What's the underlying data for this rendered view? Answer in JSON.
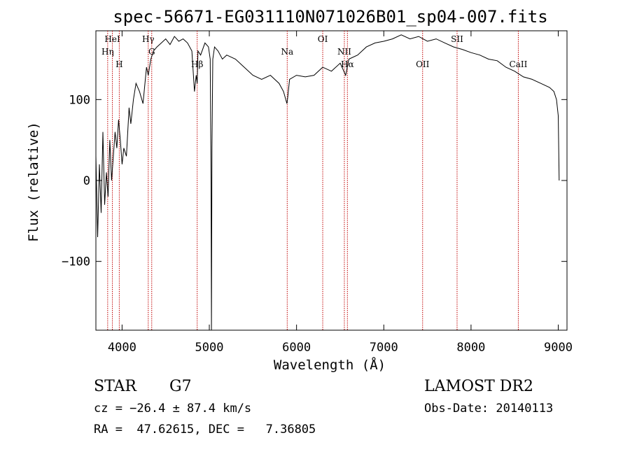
{
  "chart_data": {
    "type": "line",
    "title": "spec-56671-EG031110N071026B01_sp04-007.fits",
    "xlabel": "Wavelength (Å)",
    "ylabel": "Flux (relative)",
    "xlim": [
      3700,
      9100
    ],
    "ylim": [
      -185,
      185
    ],
    "x_ticks": [
      4000,
      5000,
      6000,
      7000,
      8000,
      9000
    ],
    "y_ticks": [
      -100,
      0,
      100
    ],
    "grid": false,
    "series": [
      {
        "x": [
          3700,
          3720,
          3740,
          3760,
          3780,
          3800,
          3820,
          3840,
          3860,
          3880,
          3900,
          3920,
          3940,
          3960,
          3980,
          4000,
          4020,
          4050,
          4080,
          4100,
          4130,
          4160,
          4200,
          4240,
          4280,
          4300,
          4330,
          4360,
          4400,
          4450,
          4500,
          4550,
          4600,
          4650,
          4700,
          4750,
          4800,
          4830,
          4850,
          4861,
          4870,
          4900,
          4950,
          4990,
          5010,
          5020,
          5025,
          5030,
          5040,
          5060,
          5100,
          5150,
          5200,
          5300,
          5400,
          5500,
          5600,
          5700,
          5800,
          5850,
          5890,
          5896,
          5920,
          6000,
          6100,
          6200,
          6300,
          6400,
          6500,
          6563,
          6600,
          6700,
          6800,
          6900,
          7000,
          7100,
          7200,
          7300,
          7400,
          7500,
          7600,
          7700,
          7800,
          7900,
          8000,
          8100,
          8200,
          8300,
          8400,
          8500,
          8600,
          8700,
          8800,
          8900,
          8950,
          8980,
          9000,
          9010
        ],
        "y": [
          30,
          -70,
          20,
          -40,
          60,
          -30,
          10,
          -20,
          50,
          0,
          30,
          60,
          40,
          75,
          50,
          20,
          40,
          30,
          90,
          70,
          100,
          120,
          110,
          95,
          140,
          130,
          150,
          160,
          165,
          170,
          175,
          168,
          178,
          172,
          175,
          170,
          160,
          110,
          130,
          120,
          160,
          155,
          170,
          165,
          150,
          0,
          -185,
          40,
          150,
          165,
          160,
          150,
          155,
          150,
          140,
          130,
          125,
          130,
          120,
          110,
          95,
          100,
          125,
          130,
          128,
          130,
          140,
          135,
          145,
          130,
          150,
          155,
          165,
          170,
          172,
          175,
          180,
          175,
          178,
          172,
          175,
          170,
          165,
          162,
          158,
          155,
          150,
          148,
          140,
          135,
          128,
          125,
          120,
          115,
          110,
          100,
          80,
          0
        ]
      }
    ],
    "lines": [
      {
        "x": 3889,
        "label": "HeI",
        "row": 0
      },
      {
        "x": 3835,
        "label": "Hη",
        "row": 1
      },
      {
        "x": 3968,
        "label": "H",
        "row": 2
      },
      {
        "x": 4300,
        "label": "Hγ",
        "row": 0
      },
      {
        "x": 4340,
        "label": "G",
        "row": 1
      },
      {
        "x": 4861,
        "label": "Hβ",
        "row": 2
      },
      {
        "x": 5893,
        "label": "Na",
        "row": 1
      },
      {
        "x": 6300,
        "label": "OI",
        "row": 0
      },
      {
        "x": 6548,
        "label": "NII",
        "row": 1
      },
      {
        "x": 6583,
        "label": "Hα",
        "row": 2
      },
      {
        "x": 7445,
        "label": "OII",
        "row": 2
      },
      {
        "x": 7840,
        "label": "SII",
        "row": 0
      },
      {
        "x": 8542,
        "label": "CaII",
        "row": 2
      }
    ]
  },
  "footer": {
    "class_label": "STAR",
    "subclass": "G7",
    "cz_text": "cz = −26.4 ± 87.4 km/s",
    "radec_text": "RA =  47.62615, DEC =   7.36805",
    "survey": "LAMOST DR2",
    "obs_date": "Obs-Date: 20140113"
  },
  "colors": {
    "spectrum": "#000000",
    "line_markers": "#c00000"
  }
}
